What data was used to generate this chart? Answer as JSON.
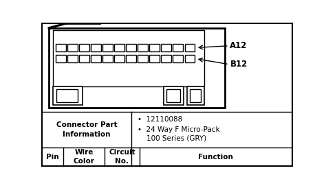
{
  "connector_label_A12": "A12",
  "connector_label_B12": "B12",
  "header_cols": [
    "Pin",
    "Wire\nColor",
    "Circuit\nNo.",
    "Function"
  ],
  "connector_info_left": "Connector Part\nInformation",
  "connector_info_right_1": "•  12110088",
  "connector_info_right_2": "•  24 Way F Micro-Pack",
  "connector_info_right_3": "    100 Series (GRY)",
  "pin_cols": 12,
  "bg_color": "#ffffff",
  "line_color": "#000000",
  "font_size": 7.5
}
